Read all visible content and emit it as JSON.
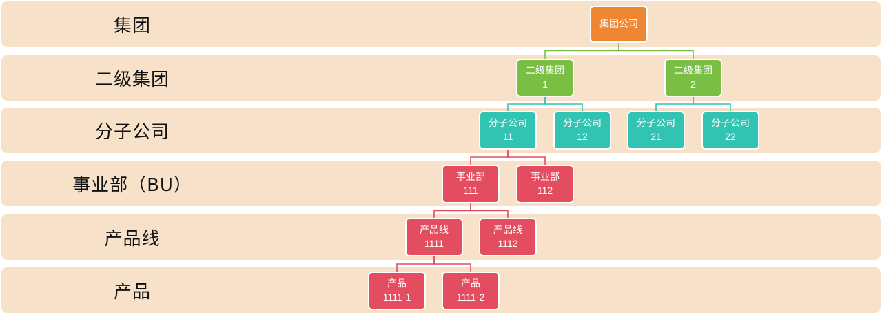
{
  "levels": [
    {
      "label": "集团"
    },
    {
      "label": "二级集团"
    },
    {
      "label": "分子公司"
    },
    {
      "label": "事业部（BU）"
    },
    {
      "label": "产品线"
    },
    {
      "label": "产品"
    }
  ],
  "colors": {
    "band": "#f8e1c9",
    "group": "#ef8632",
    "level2": "#7abf43",
    "subsidiary": "#31c4b3",
    "unit": "#e34d5f"
  },
  "nodes": [
    {
      "id": "root",
      "name": "集团公司",
      "code": ""
    },
    {
      "id": "g1",
      "name": "二级集团",
      "code": "1"
    },
    {
      "id": "g2",
      "name": "二级集团",
      "code": "2"
    },
    {
      "id": "c11",
      "name": "分子公司",
      "code": "11"
    },
    {
      "id": "c12",
      "name": "分子公司",
      "code": "12"
    },
    {
      "id": "c21",
      "name": "分子公司",
      "code": "21"
    },
    {
      "id": "c22",
      "name": "分子公司",
      "code": "22"
    },
    {
      "id": "b111",
      "name": "事业部",
      "code": "111"
    },
    {
      "id": "b112",
      "name": "事业部",
      "code": "112"
    },
    {
      "id": "p1111",
      "name": "产品线",
      "code": "1111"
    },
    {
      "id": "p1112",
      "name": "产品线",
      "code": "1112"
    },
    {
      "id": "r1",
      "name": "产品",
      "code": "1111-1"
    },
    {
      "id": "r2",
      "name": "产品",
      "code": "1111-2"
    }
  ],
  "edges": [
    {
      "from": "root",
      "to": "g1"
    },
    {
      "from": "root",
      "to": "g2"
    },
    {
      "from": "g1",
      "to": "c11"
    },
    {
      "from": "g1",
      "to": "c12"
    },
    {
      "from": "g2",
      "to": "c21"
    },
    {
      "from": "g2",
      "to": "c22"
    },
    {
      "from": "c11",
      "to": "b111"
    },
    {
      "from": "c11",
      "to": "b112"
    },
    {
      "from": "b111",
      "to": "p1111"
    },
    {
      "from": "b111",
      "to": "p1112"
    },
    {
      "from": "p1111",
      "to": "r1"
    },
    {
      "from": "p1111",
      "to": "r2"
    }
  ]
}
